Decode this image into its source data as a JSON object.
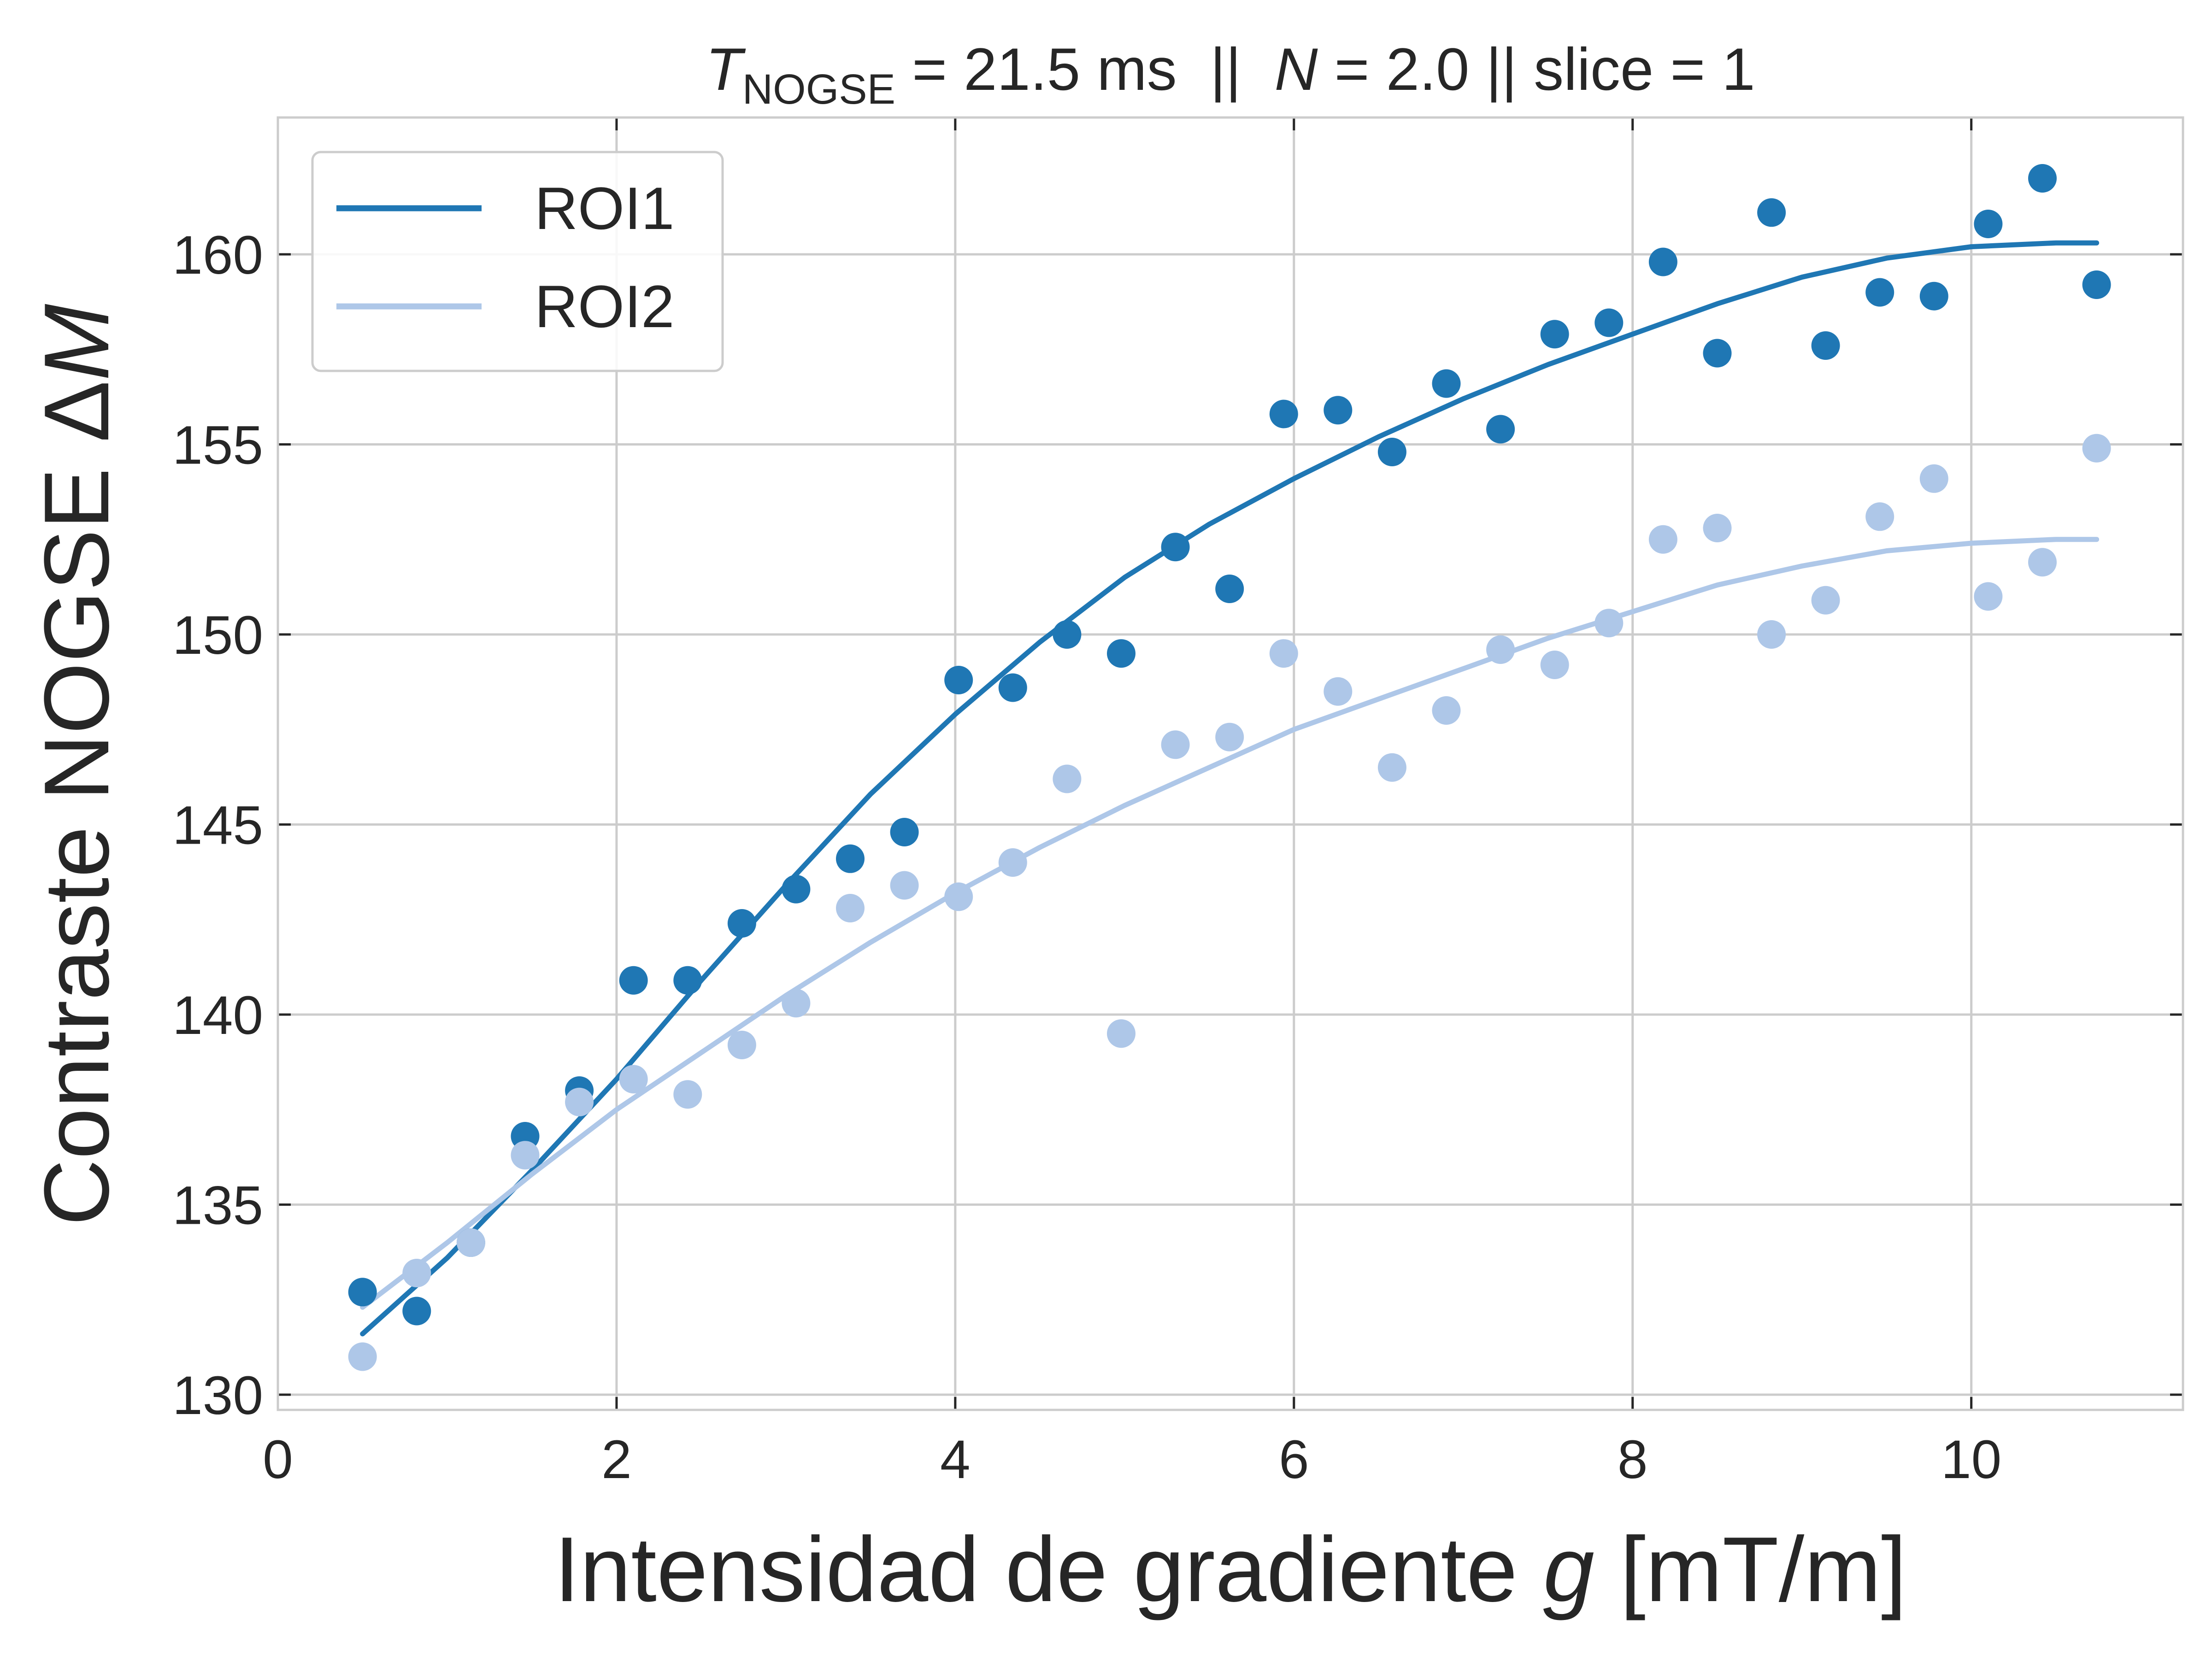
{
  "chart_data": {
    "type": "scatter",
    "title": {
      "prefix": "T",
      "prefix_subscript": "NOGSE",
      "prefix_rest": " = 21.5 ms  ||  ",
      "n_symbol": "N",
      "rest": " = 2.0 || slice = 1"
    },
    "xlabel": {
      "text": "Intensidad de gradiente ",
      "symbol": "g",
      "unit": " [mT/m]"
    },
    "ylabel": {
      "text": "Contraste NOGSE Δ",
      "symbol": "M"
    },
    "xlim": [
      0,
      11.25
    ],
    "ylim": [
      129.6,
      163.6
    ],
    "xticks": [
      0,
      2,
      4,
      6,
      8,
      10
    ],
    "yticks": [
      130,
      135,
      140,
      145,
      150,
      155,
      160
    ],
    "grid": true,
    "legend": {
      "position": "top-left",
      "labels": [
        "ROI1",
        "ROI2"
      ]
    },
    "colors": {
      "ROI1": "#1f77b4",
      "ROI2": "#aec7e8",
      "grid": "#cccccc",
      "frame": "#cccccc",
      "text": "#262626"
    },
    "series": [
      {
        "name": "ROI1",
        "color": "#1f77b4",
        "x": [
          0.5,
          0.82,
          1.14,
          1.46,
          1.78,
          2.1,
          2.42,
          2.74,
          3.06,
          3.38,
          3.7,
          4.02,
          4.34,
          4.66,
          4.98,
          5.3,
          5.62,
          5.94,
          6.26,
          6.58,
          6.9,
          7.22,
          7.54,
          7.86,
          8.18,
          8.5,
          8.82,
          9.14,
          9.46,
          9.78,
          10.1,
          10.42,
          10.74
        ],
        "y": [
          132.7,
          132.2,
          134.0,
          136.8,
          138.0,
          140.9,
          140.9,
          142.4,
          143.3,
          144.1,
          144.8,
          148.8,
          148.6,
          150.0,
          149.5,
          152.3,
          151.2,
          155.8,
          155.9,
          154.8,
          156.6,
          155.4,
          157.9,
          158.2,
          159.8,
          157.4,
          161.1,
          157.6,
          159.0,
          158.9,
          160.8,
          162.0,
          159.2
        ],
        "fit": {
          "x": [
            0.5,
            1.0,
            1.5,
            2.0,
            2.5,
            3.0,
            3.5,
            4.0,
            4.5,
            5.0,
            5.5,
            6.0,
            6.5,
            7.0,
            7.5,
            8.0,
            8.5,
            9.0,
            9.5,
            10.0,
            10.5,
            10.74
          ],
          "y": [
            131.6,
            133.6,
            135.9,
            138.3,
            140.9,
            143.4,
            145.8,
            147.9,
            149.8,
            151.5,
            152.9,
            154.1,
            155.2,
            156.2,
            157.1,
            157.9,
            158.7,
            159.4,
            159.9,
            160.2,
            160.3,
            160.3
          ]
        }
      },
      {
        "name": "ROI2",
        "color": "#aec7e8",
        "x": [
          0.5,
          0.82,
          1.14,
          1.46,
          1.78,
          2.1,
          2.42,
          2.74,
          3.06,
          3.38,
          3.7,
          4.02,
          4.34,
          4.66,
          4.98,
          5.3,
          5.62,
          5.94,
          6.26,
          6.58,
          6.9,
          7.22,
          7.54,
          7.86,
          8.18,
          8.5,
          8.82,
          9.14,
          9.46,
          9.78,
          10.1,
          10.42,
          10.74
        ],
        "y": [
          131.0,
          133.2,
          134.0,
          136.3,
          137.7,
          138.3,
          137.9,
          139.2,
          140.3,
          142.8,
          143.4,
          143.1,
          144.0,
          146.2,
          139.5,
          147.1,
          147.3,
          149.5,
          148.5,
          146.5,
          148.0,
          149.6,
          149.2,
          150.3,
          152.5,
          152.8,
          150.0,
          150.9,
          153.1,
          154.1,
          151.0,
          151.9,
          154.9
        ],
        "fit": {
          "x": [
            0.5,
            1.0,
            1.5,
            2.0,
            2.5,
            3.0,
            3.5,
            4.0,
            4.5,
            5.0,
            5.5,
            6.0,
            6.5,
            7.0,
            7.5,
            8.0,
            8.5,
            9.0,
            9.5,
            10.0,
            10.5,
            10.74
          ],
          "y": [
            132.3,
            134.0,
            135.8,
            137.5,
            139.0,
            140.5,
            141.9,
            143.2,
            144.4,
            145.5,
            146.5,
            147.5,
            148.3,
            149.1,
            149.9,
            150.6,
            151.3,
            151.8,
            152.2,
            152.4,
            152.5,
            152.5
          ]
        }
      }
    ]
  }
}
